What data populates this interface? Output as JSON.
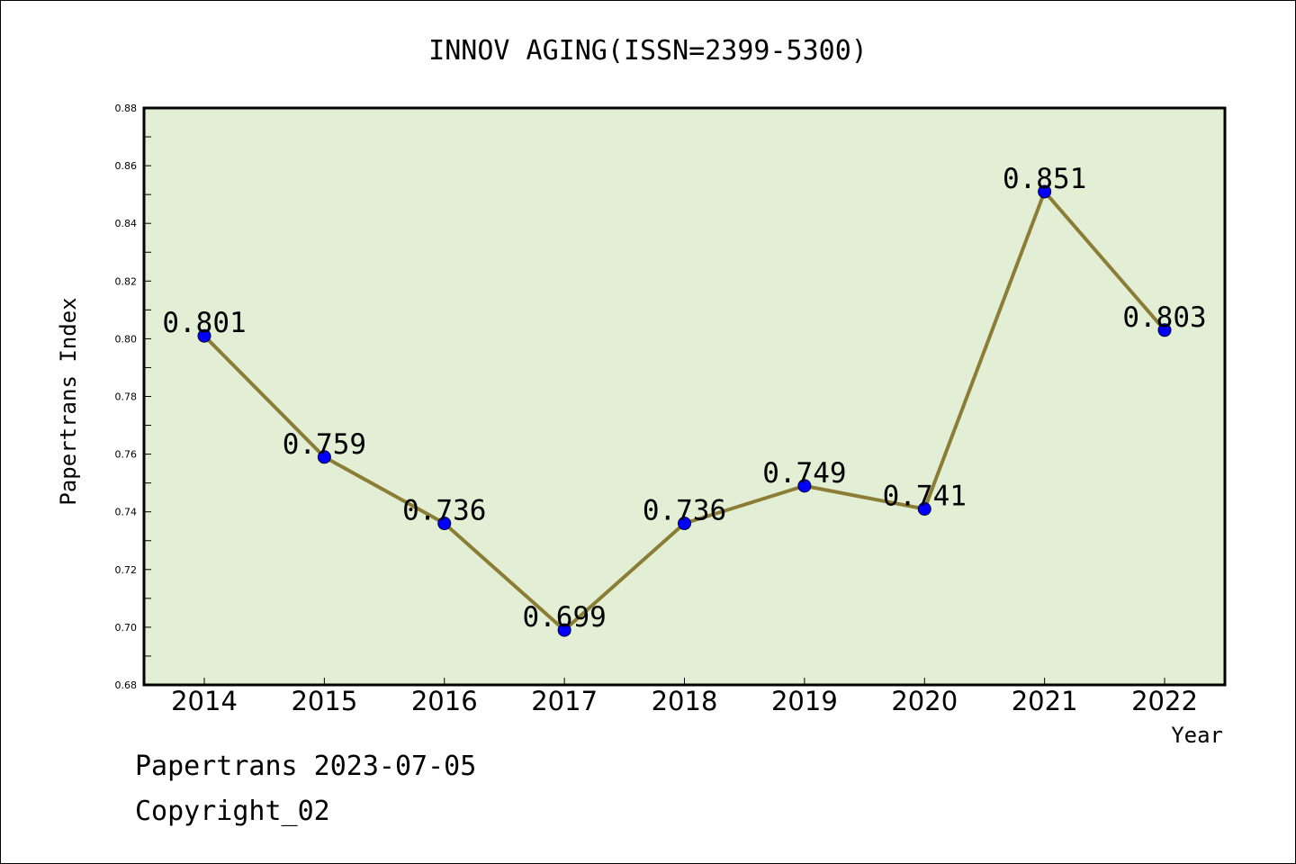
{
  "chart_data": {
    "type": "line",
    "title": "INNOV AGING(ISSN=2399-5300)",
    "xlabel": "Year",
    "ylabel": "Papertrans Index",
    "categories": [
      "2014",
      "2015",
      "2016",
      "2017",
      "2018",
      "2019",
      "2020",
      "2021",
      "2022"
    ],
    "values": [
      0.801,
      0.759,
      0.736,
      0.699,
      0.736,
      0.749,
      0.741,
      0.851,
      0.803
    ],
    "data_labels": [
      "0.801",
      "0.759",
      "0.736",
      "0.699",
      "0.736",
      "0.749",
      "0.741",
      "0.851",
      "0.803"
    ],
    "ylim": [
      0.68,
      0.88
    ],
    "yticks": [
      "0.68",
      "0.70",
      "0.72",
      "0.74",
      "0.76",
      "0.78",
      "0.80",
      "0.82",
      "0.84",
      "0.86",
      "0.88"
    ],
    "grid": false,
    "colors": {
      "plot_background": "#e2efd5",
      "line": "#8b7d35",
      "marker": "#0000ff"
    }
  },
  "footer": {
    "source": "Papertrans 2023-07-05",
    "copyright": "Copyright_02"
  }
}
